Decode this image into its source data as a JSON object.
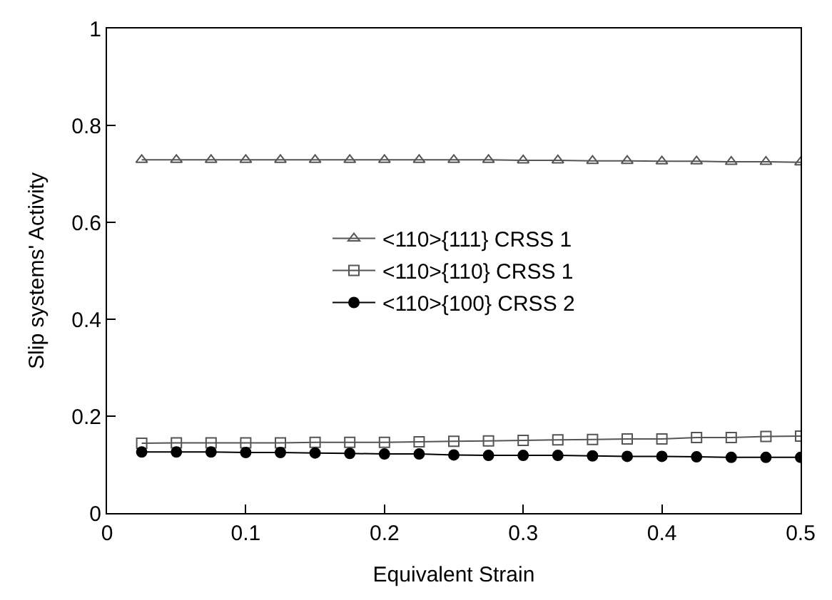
{
  "chart_data": {
    "type": "line",
    "xlabel": "Equivalent Strain",
    "ylabel": "Slip systems' Activity",
    "x": [
      0.025,
      0.05,
      0.075,
      0.1,
      0.125,
      0.15,
      0.175,
      0.2,
      0.225,
      0.25,
      0.275,
      0.3,
      0.325,
      0.35,
      0.375,
      0.4,
      0.425,
      0.45,
      0.475,
      0.5
    ],
    "series": [
      {
        "name": "<110>{111} CRSS 1",
        "color": "#555555",
        "marker": "triangle",
        "values": [
          0.729,
          0.729,
          0.729,
          0.729,
          0.729,
          0.729,
          0.729,
          0.729,
          0.729,
          0.729,
          0.729,
          0.728,
          0.728,
          0.727,
          0.727,
          0.726,
          0.726,
          0.725,
          0.725,
          0.724
        ]
      },
      {
        "name": "<110>{110} CRSS 1",
        "color": "#555555",
        "marker": "square",
        "values": [
          0.144,
          0.145,
          0.145,
          0.145,
          0.145,
          0.146,
          0.146,
          0.146,
          0.147,
          0.148,
          0.149,
          0.15,
          0.151,
          0.152,
          0.153,
          0.153,
          0.156,
          0.156,
          0.158,
          0.159
        ]
      },
      {
        "name": "<110>{100} CRSS 2",
        "color": "#000000",
        "marker": "circle",
        "values": [
          0.126,
          0.126,
          0.126,
          0.125,
          0.125,
          0.124,
          0.123,
          0.122,
          0.122,
          0.12,
          0.119,
          0.119,
          0.119,
          0.118,
          0.117,
          0.117,
          0.116,
          0.115,
          0.115,
          0.115
        ]
      }
    ],
    "xlim": [
      0,
      0.5
    ],
    "xticks": [
      0,
      0.1,
      0.2,
      0.3,
      0.4,
      0.5
    ],
    "ylim": [
      0,
      1
    ],
    "yticks": [
      0,
      0.2,
      0.4,
      0.6,
      0.8,
      1
    ],
    "grid": false,
    "legend": "center",
    "line_style": "solid"
  }
}
